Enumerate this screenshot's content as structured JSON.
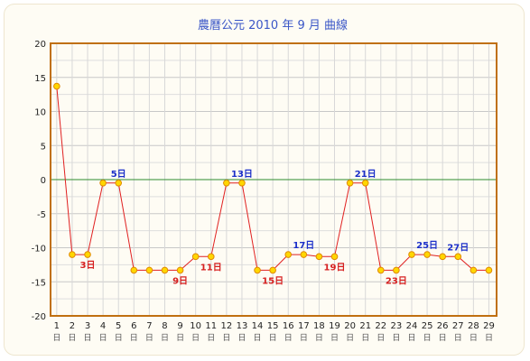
{
  "chart_data": {
    "type": "line",
    "title": "農曆公元 2010 年 9 月 曲線",
    "x_unit": "日",
    "x": [
      1,
      2,
      3,
      4,
      5,
      6,
      7,
      8,
      9,
      10,
      11,
      12,
      13,
      14,
      15,
      16,
      17,
      18,
      19,
      20,
      21,
      22,
      23,
      24,
      25,
      26,
      27,
      28,
      29
    ],
    "y": [
      13.7,
      -11,
      -11,
      -0.5,
      -0.5,
      -13.3,
      -13.3,
      -13.3,
      -13.3,
      -11.3,
      -11.3,
      -0.5,
      -0.5,
      -13.3,
      -13.3,
      -11,
      -11,
      -11.3,
      -11.3,
      -0.5,
      -0.5,
      -13.3,
      -13.3,
      -11,
      -11,
      -11.3,
      -11.3,
      -13.3,
      -13.3
    ],
    "ylim": [
      -20,
      20
    ],
    "yticks": [
      20,
      15,
      10,
      5,
      0,
      -5,
      -10,
      -15,
      -20
    ],
    "grid": true,
    "line_color": "#e02020",
    "marker_color": "#ffd700",
    "zero_line_color": "#2e8b2e",
    "frame_color": "#c07010",
    "annotations_low": [
      {
        "x": 3,
        "text": "3日"
      },
      {
        "x": 9,
        "text": "9日"
      },
      {
        "x": 11,
        "text": "11日"
      },
      {
        "x": 15,
        "text": "15日"
      },
      {
        "x": 19,
        "text": "19日"
      },
      {
        "x": 23,
        "text": "23日"
      }
    ],
    "annotations_high": [
      {
        "x": 5,
        "text": "5日"
      },
      {
        "x": 13,
        "text": "13日"
      },
      {
        "x": 17,
        "text": "17日"
      },
      {
        "x": 21,
        "text": "21日"
      },
      {
        "x": 25,
        "text": "25日"
      },
      {
        "x": 27,
        "text": "27日"
      }
    ]
  }
}
